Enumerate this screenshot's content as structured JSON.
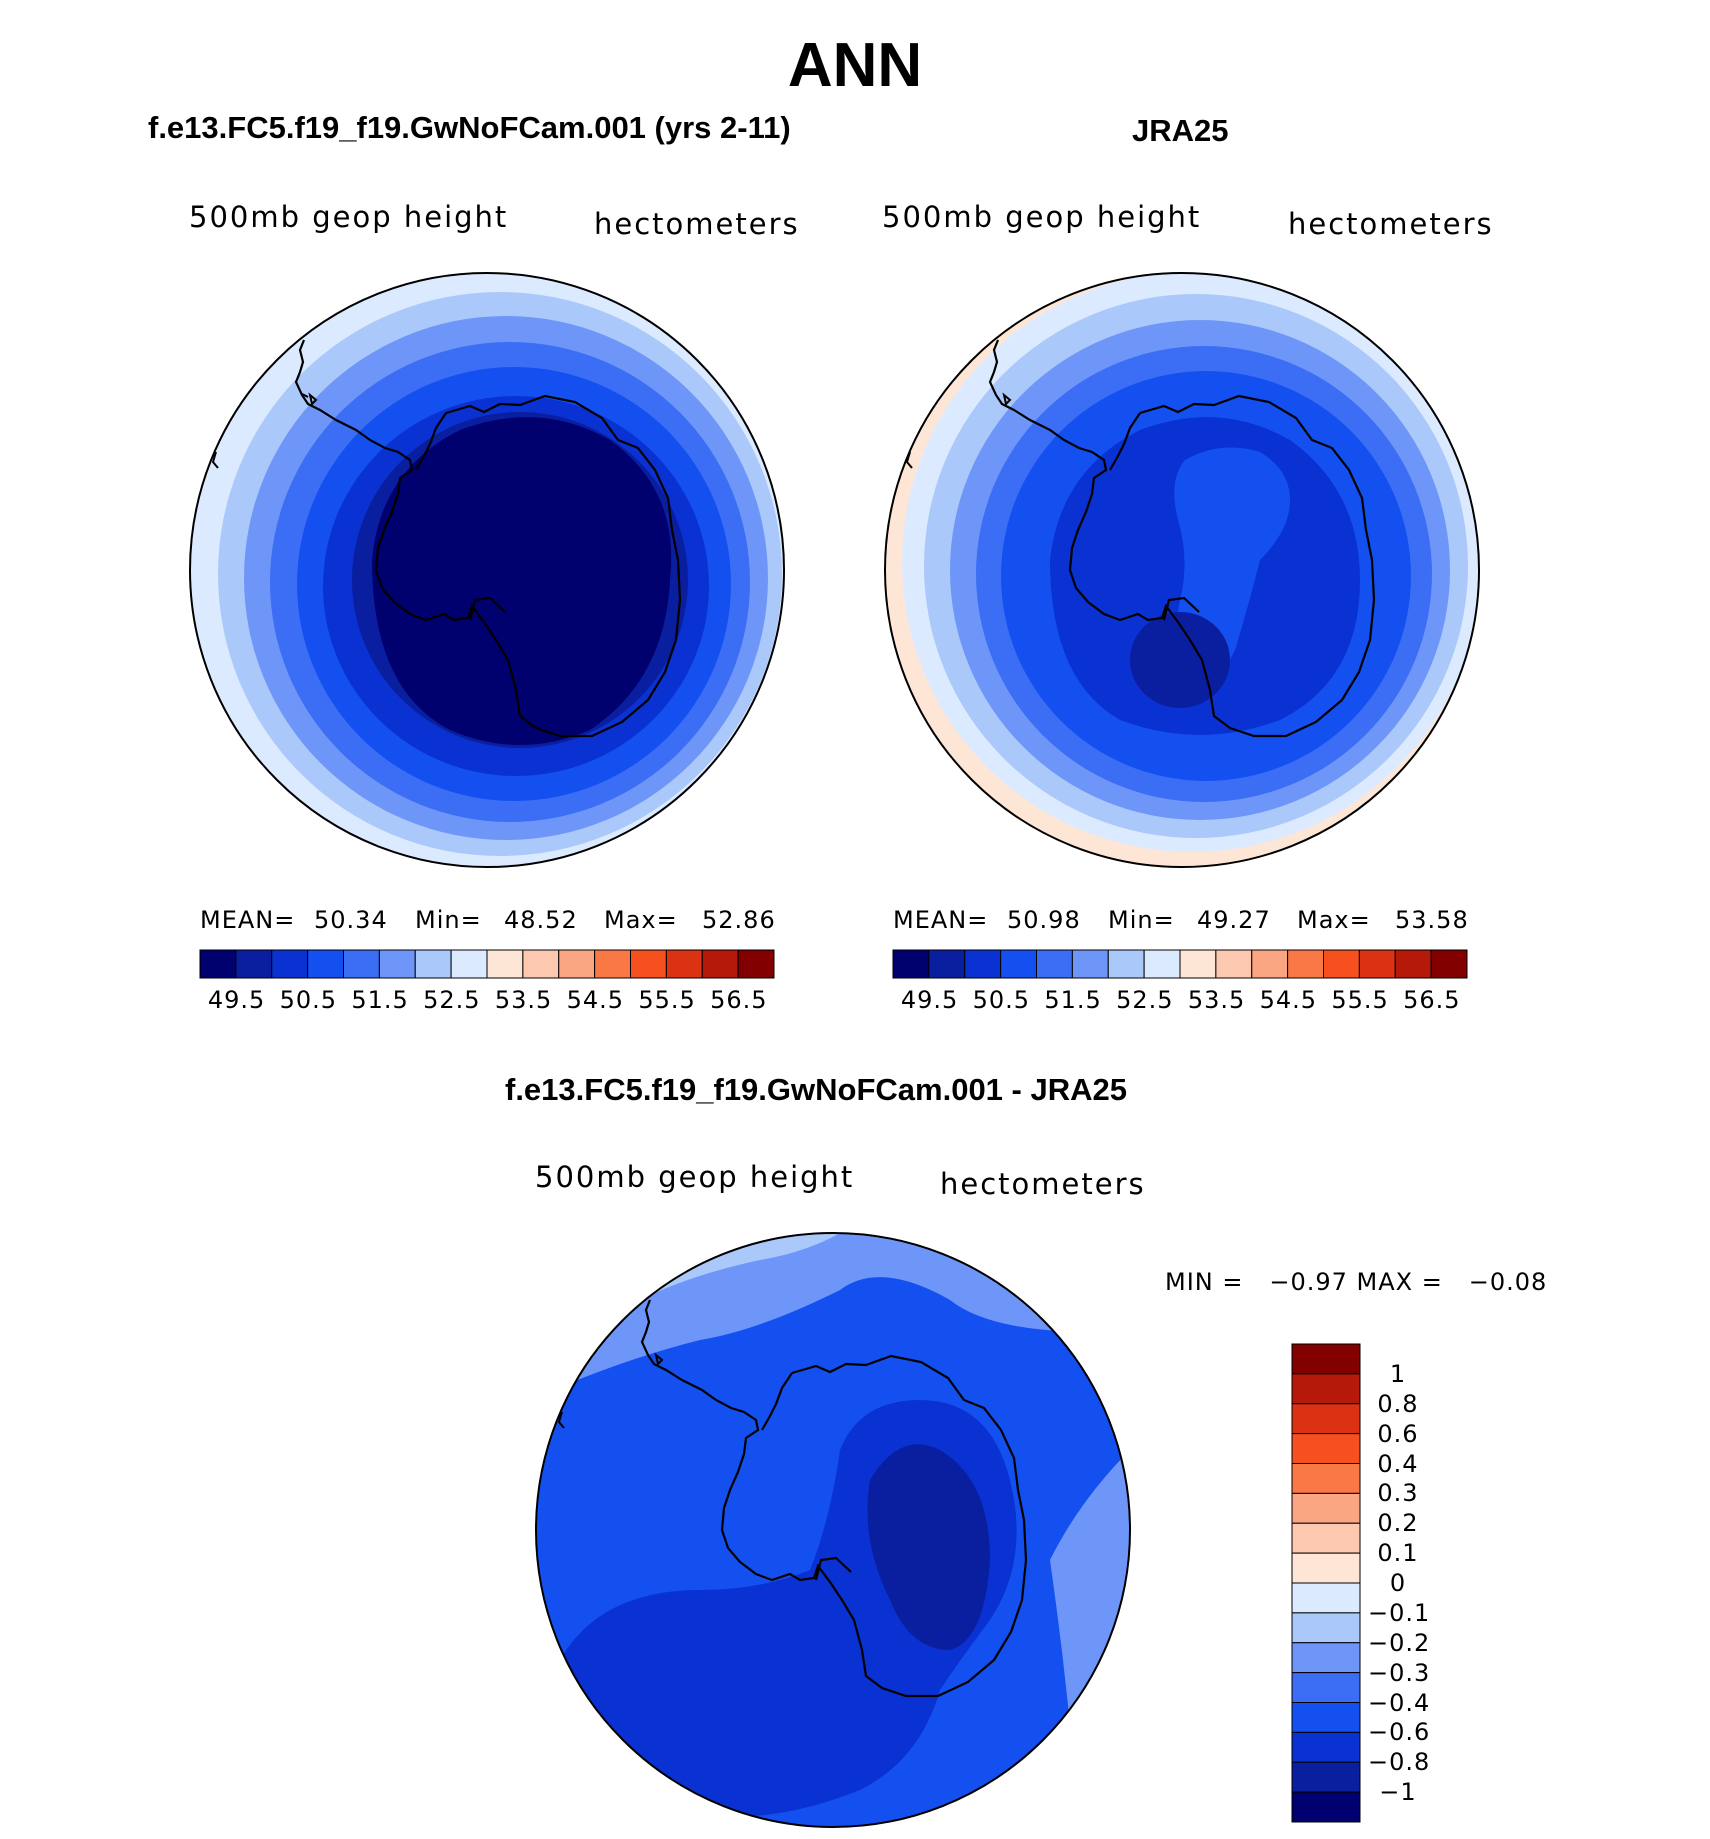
{
  "title": "ANN",
  "colors": {
    "scale": [
      "#00006e",
      "#0a1ea0",
      "#0a32d2",
      "#1450f0",
      "#3c6ef5",
      "#6e96f8",
      "#aac8fa",
      "#dceaff",
      "#fde6d6",
      "#fcc8b0",
      "#fba682",
      "#fa7846",
      "#f5501e",
      "#dc3214",
      "#b4190a",
      "#820000"
    ],
    "coast": "#000000"
  },
  "panels": {
    "test": {
      "title": "f.e13.FC5.f19_f19.GwNoFCam.001 (yrs 2-11)",
      "variable": "500mb geop height",
      "units": "hectometers",
      "stats": {
        "mean_label": "MEAN=",
        "mean": "50.34",
        "min_label": "Min=",
        "min": "48.52",
        "max_label": "Max=",
        "max": "52.86"
      }
    },
    "obs": {
      "title": "JRA25",
      "variable": "500mb geop height",
      "units": "hectometers",
      "stats": {
        "mean_label": "MEAN=",
        "mean": "50.98",
        "min_label": "Min=",
        "min": "49.27",
        "max_label": "Max=",
        "max": "53.58"
      }
    },
    "diff": {
      "title": "f.e13.FC5.f19_f19.GwNoFCam.001 - JRA25",
      "variable": "500mb geop height",
      "units": "hectometers",
      "stats_text": "MIN =   −0.97 MAX =   −0.08"
    }
  },
  "colorbars": {
    "main_tick_labels": [
      "49.5",
      "50.5",
      "51.5",
      "52.5",
      "53.5",
      "54.5",
      "55.5",
      "56.5"
    ],
    "diff_levels": [
      "1",
      "0.8",
      "0.6",
      "0.4",
      "0.3",
      "0.2",
      "0.1",
      "0",
      "−0.1",
      "−0.2",
      "−0.3",
      "−0.4",
      "−0.6",
      "−0.8",
      "−1"
    ]
  }
}
